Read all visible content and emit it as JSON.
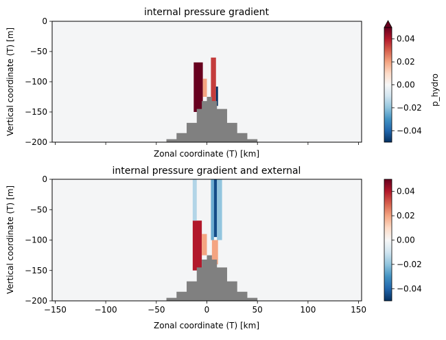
{
  "chart_data": [
    {
      "type": "heatmap",
      "title": "internal pressure gradient",
      "xlabel": "Zonal coordinate (T) [km]",
      "ylabel": "Vertical coordinate (T) [m]",
      "xlim": [
        -153,
        153
      ],
      "ylim": [
        -200,
        0
      ],
      "x_ticks": [
        -150,
        -100,
        -50,
        0,
        50,
        100,
        150
      ],
      "x_tick_labels_shown": false,
      "y_ticks": [
        0,
        -50,
        -100,
        -150,
        -200
      ],
      "y_tick_labels": [
        "0",
        "−50",
        "−100",
        "−150",
        "−200"
      ],
      "colormap": "RdBu_r",
      "colorbar": {
        "label": "p_hydro",
        "range": [
          -0.05,
          0.05
        ],
        "extend": "max",
        "ticks": [
          0.04,
          0.02,
          0.0,
          -0.02,
          -0.04
        ],
        "tick_labels": [
          "0.04",
          "0.02",
          "0.00",
          "−0.02",
          "−0.04"
        ]
      },
      "topography": {
        "color": "#808080",
        "profile_x": [
          -50,
          -40,
          -30,
          -20,
          -10,
          -5,
          0,
          5,
          10,
          20,
          30,
          40,
          50
        ],
        "profile_depth": [
          -200,
          -195,
          -185,
          -168,
          -145,
          -132,
          -125,
          -132,
          -145,
          -168,
          -185,
          -195,
          -200
        ]
      },
      "features": [
        {
          "x": [
            -13,
            -4
          ],
          "depth": [
            -150,
            -68
          ],
          "value": 0.05
        },
        {
          "x": [
            -4,
            0
          ],
          "depth": [
            -125,
            -95
          ],
          "value": 0.02
        },
        {
          "x": [
            4,
            9
          ],
          "depth": [
            -140,
            -60
          ],
          "value": 0.035
        },
        {
          "x": [
            9,
            11
          ],
          "depth": [
            -140,
            -108
          ],
          "value": -0.05
        }
      ]
    },
    {
      "type": "heatmap",
      "title": "internal pressure gradient and external",
      "xlabel": "Zonal coordinate (T) [km]",
      "ylabel": "Vertical coordinate (T) [m]",
      "xlim": [
        -153,
        153
      ],
      "ylim": [
        -200,
        0
      ],
      "x_ticks": [
        -150,
        -100,
        -50,
        0,
        50,
        100,
        150
      ],
      "x_tick_labels": [
        "−150",
        "−100",
        "−50",
        "0",
        "50",
        "100",
        "150"
      ],
      "y_ticks": [
        0,
        -50,
        -100,
        -150,
        -200
      ],
      "y_tick_labels": [
        "0",
        "−50",
        "−100",
        "−150",
        "−200"
      ],
      "colormap": "RdBu_r",
      "colorbar": {
        "range": [
          -0.05,
          0.05
        ],
        "extend": "neither",
        "ticks": [
          0.04,
          0.02,
          0.0,
          -0.02,
          -0.04
        ],
        "tick_labels": [
          "0.04",
          "0.02",
          "0.00",
          "−0.02",
          "−0.04"
        ]
      },
      "topography": {
        "color": "#808080",
        "profile_x": [
          -50,
          -40,
          -30,
          -20,
          -10,
          -5,
          0,
          5,
          10,
          20,
          30,
          40,
          50
        ],
        "profile_depth": [
          -200,
          -195,
          -185,
          -168,
          -145,
          -132,
          -125,
          -132,
          -145,
          -168,
          -185,
          -195,
          -200
        ]
      },
      "features": [
        {
          "x": [
            -14,
            -5
          ],
          "depth": [
            -150,
            -68
          ],
          "value": 0.04
        },
        {
          "x": [
            -14,
            -10
          ],
          "depth": [
            -68,
            0
          ],
          "value": -0.015
        },
        {
          "x": [
            -5,
            0
          ],
          "depth": [
            -125,
            -90
          ],
          "value": 0.02
        },
        {
          "x": [
            4,
            7
          ],
          "depth": [
            -100,
            0
          ],
          "value": -0.025
        },
        {
          "x": [
            7,
            10
          ],
          "depth": [
            -95,
            0
          ],
          "value": -0.045
        },
        {
          "x": [
            10,
            15
          ],
          "depth": [
            -100,
            0
          ],
          "value": -0.02
        },
        {
          "x": [
            5,
            11
          ],
          "depth": [
            -140,
            -100
          ],
          "value": 0.02
        }
      ]
    }
  ]
}
